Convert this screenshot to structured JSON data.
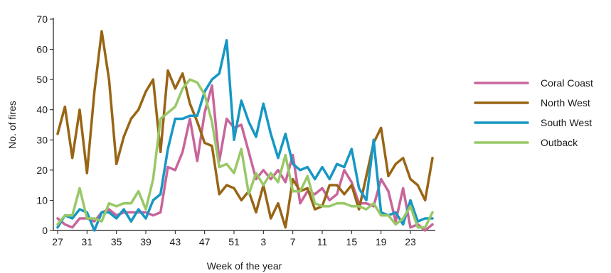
{
  "chart_data": {
    "type": "line",
    "title": "",
    "xlabel": "Week of the year",
    "ylabel": "No. of fires",
    "ylim": [
      0,
      70
    ],
    "yticks": [
      0,
      10,
      20,
      30,
      40,
      50,
      60,
      70
    ],
    "xtick_labels": [
      "27",
      "31",
      "35",
      "39",
      "43",
      "47",
      "51",
      "3",
      "7",
      "11",
      "15",
      "19",
      "23"
    ],
    "x": [
      "27",
      "28",
      "29",
      "30",
      "31",
      "32",
      "33",
      "34",
      "35",
      "36",
      "37",
      "38",
      "39",
      "40",
      "41",
      "42",
      "43",
      "44",
      "45",
      "46",
      "47",
      "48",
      "49",
      "50",
      "51",
      "52",
      "1",
      "2",
      "3",
      "4",
      "5",
      "6",
      "7",
      "8",
      "9",
      "10",
      "11",
      "12",
      "13",
      "14",
      "15",
      "16",
      "17",
      "18",
      "19",
      "20",
      "21",
      "22",
      "23",
      "24",
      "25",
      "26"
    ],
    "legend_position": "right",
    "grid": false,
    "series": [
      {
        "name": "Coral Coast",
        "color": "#c8659a",
        "values": [
          4,
          2,
          1,
          4,
          4,
          3,
          6,
          7,
          5,
          6,
          6,
          6,
          6,
          5,
          6,
          21,
          20,
          26,
          37,
          23,
          39,
          48,
          23,
          37,
          34,
          35,
          26,
          17,
          20,
          17,
          20,
          16,
          25,
          9,
          13,
          12,
          14,
          10,
          12,
          20,
          16,
          9,
          9,
          8,
          17,
          13,
          3,
          14,
          1,
          2,
          0,
          2
        ]
      },
      {
        "name": "North West",
        "color": "#996515",
        "values": [
          32,
          41,
          24,
          40,
          19,
          46,
          66,
          50,
          22,
          31,
          37,
          40,
          46,
          50,
          26,
          53,
          47,
          52,
          42,
          36,
          29,
          28,
          12,
          15,
          14,
          10,
          13,
          6,
          15,
          4,
          9,
          1,
          17,
          13,
          14,
          7,
          8,
          15,
          15,
          12,
          15,
          7,
          18,
          29,
          34,
          18,
          22,
          24,
          17,
          15,
          10,
          24
        ]
      },
      {
        "name": "South West",
        "color": "#1797c3",
        "values": [
          1,
          5,
          4,
          7,
          6,
          0,
          6,
          6,
          4,
          7,
          3,
          7,
          4,
          10,
          12,
          27,
          37,
          37,
          38,
          38,
          46,
          50,
          52,
          63,
          30,
          43,
          36,
          31,
          42,
          32,
          24,
          32,
          22,
          20,
          21,
          17,
          21,
          17,
          22,
          21,
          27,
          14,
          10,
          30,
          6,
          5,
          6,
          2,
          10,
          3,
          4,
          4
        ]
      },
      {
        "name": "Outback",
        "color": "#99c866",
        "values": [
          2,
          5,
          5,
          14,
          4,
          4,
          3,
          9,
          8,
          9,
          9,
          13,
          7,
          17,
          37,
          39,
          41,
          47,
          50,
          49,
          45,
          36,
          21,
          22,
          19,
          27,
          12,
          19,
          15,
          19,
          16,
          25,
          13,
          13,
          18,
          9,
          8,
          8,
          9,
          9,
          8,
          8,
          7,
          9,
          5,
          5,
          2,
          4,
          8,
          1,
          1,
          6
        ]
      }
    ]
  }
}
